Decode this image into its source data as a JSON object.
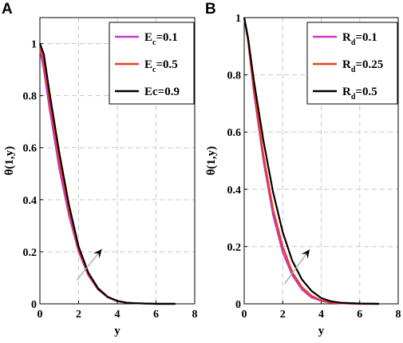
{
  "colors": {
    "magenta": "#cc33cc",
    "red": "#e8401c",
    "black": "#000000",
    "grid": "#c8c8c8"
  },
  "chart_data": [
    {
      "panel": "A",
      "type": "line",
      "xlabel": "y",
      "ylabel": "θ(1,y)",
      "xlim": [
        0,
        8
      ],
      "ylim": [
        0,
        1.1
      ],
      "xticks": [
        "0",
        "2",
        "4",
        "6",
        "8"
      ],
      "yticks": [
        "0",
        "0.2",
        "0.4",
        "0.6",
        "0.8",
        "1"
      ],
      "grid": true,
      "legend_position": "top-right",
      "series": [
        {
          "name": "E_c=0.1",
          "legend_main": "E",
          "legend_sub": "c",
          "legend_rest": "=0.1",
          "color": "#cc33cc",
          "x": [
            0,
            0.2,
            0.5,
            1,
            1.5,
            2,
            2.5,
            3,
            3.5,
            4,
            4.5,
            5,
            6,
            7
          ],
          "y": [
            0.98,
            0.9,
            0.75,
            0.52,
            0.34,
            0.2,
            0.11,
            0.055,
            0.025,
            0.01,
            0.004,
            0.002,
            0.0,
            0.0
          ]
        },
        {
          "name": "E_c=0.5",
          "legend_main": "E",
          "legend_sub": "c",
          "legend_rest": "=0.5",
          "color": "#e8401c",
          "x": [
            0,
            0.2,
            0.5,
            1,
            1.5,
            2,
            2.5,
            3,
            3.5,
            4,
            4.5,
            5,
            6,
            7
          ],
          "y": [
            0.99,
            0.93,
            0.78,
            0.55,
            0.36,
            0.21,
            0.115,
            0.057,
            0.026,
            0.011,
            0.004,
            0.002,
            0.0,
            0.0
          ]
        },
        {
          "name": "Ec=0.9",
          "legend_main": "Ec",
          "legend_sub": "",
          "legend_rest": "=0.9",
          "color": "#000000",
          "x": [
            0,
            0.2,
            0.5,
            1,
            1.5,
            2,
            2.5,
            3,
            3.5,
            4,
            4.5,
            5,
            6,
            7
          ],
          "y": [
            1.0,
            0.96,
            0.81,
            0.58,
            0.38,
            0.22,
            0.12,
            0.06,
            0.027,
            0.011,
            0.004,
            0.002,
            0.0,
            0.0
          ]
        }
      ],
      "arrow": {
        "from": [
          1.9,
          0.09
        ],
        "to": [
          3.2,
          0.21
        ]
      }
    },
    {
      "panel": "B",
      "type": "line",
      "xlabel": "y",
      "ylabel": "θ(1,y)",
      "xlim": [
        0,
        8
      ],
      "ylim": [
        0,
        1
      ],
      "xticks": [
        "0",
        "2",
        "4",
        "6",
        "8"
      ],
      "yticks": [
        "0",
        "0.2",
        "0.4",
        "0.6",
        "0.8",
        "1"
      ],
      "grid": true,
      "legend_position": "top-right",
      "series": [
        {
          "name": "R_d=0.1",
          "legend_main": "R",
          "legend_sub": "d",
          "legend_rest": "=0.1",
          "color": "#cc33cc",
          "x": [
            0,
            0.2,
            0.5,
            1,
            1.5,
            2,
            2.5,
            3,
            3.5,
            4,
            4.5,
            5,
            6,
            7
          ],
          "y": [
            1.0,
            0.92,
            0.74,
            0.5,
            0.31,
            0.18,
            0.1,
            0.05,
            0.022,
            0.01,
            0.004,
            0.002,
            0.0,
            0.0
          ]
        },
        {
          "name": "R_d=0.25",
          "legend_main": "R",
          "legend_sub": "d",
          "legend_rest": "=0.25",
          "color": "#e8401c",
          "x": [
            0,
            0.2,
            0.5,
            1,
            1.5,
            2,
            2.5,
            3,
            3.5,
            4,
            4.5,
            5,
            6,
            7
          ],
          "y": [
            1.0,
            0.92,
            0.75,
            0.52,
            0.33,
            0.2,
            0.11,
            0.058,
            0.028,
            0.012,
            0.005,
            0.002,
            0.0,
            0.0
          ]
        },
        {
          "name": "R_d=0.5",
          "legend_main": "R",
          "legend_sub": "d",
          "legend_rest": "=0.5",
          "color": "#000000",
          "x": [
            0,
            0.2,
            0.5,
            1,
            1.5,
            2,
            2.5,
            3,
            3.5,
            4,
            4.5,
            5,
            6,
            7
          ],
          "y": [
            1.0,
            0.93,
            0.78,
            0.57,
            0.39,
            0.25,
            0.15,
            0.085,
            0.045,
            0.02,
            0.009,
            0.004,
            0.001,
            0.0
          ]
        }
      ],
      "arrow": {
        "from": [
          2.1,
          0.07
        ],
        "to": [
          3.4,
          0.19
        ]
      }
    }
  ]
}
